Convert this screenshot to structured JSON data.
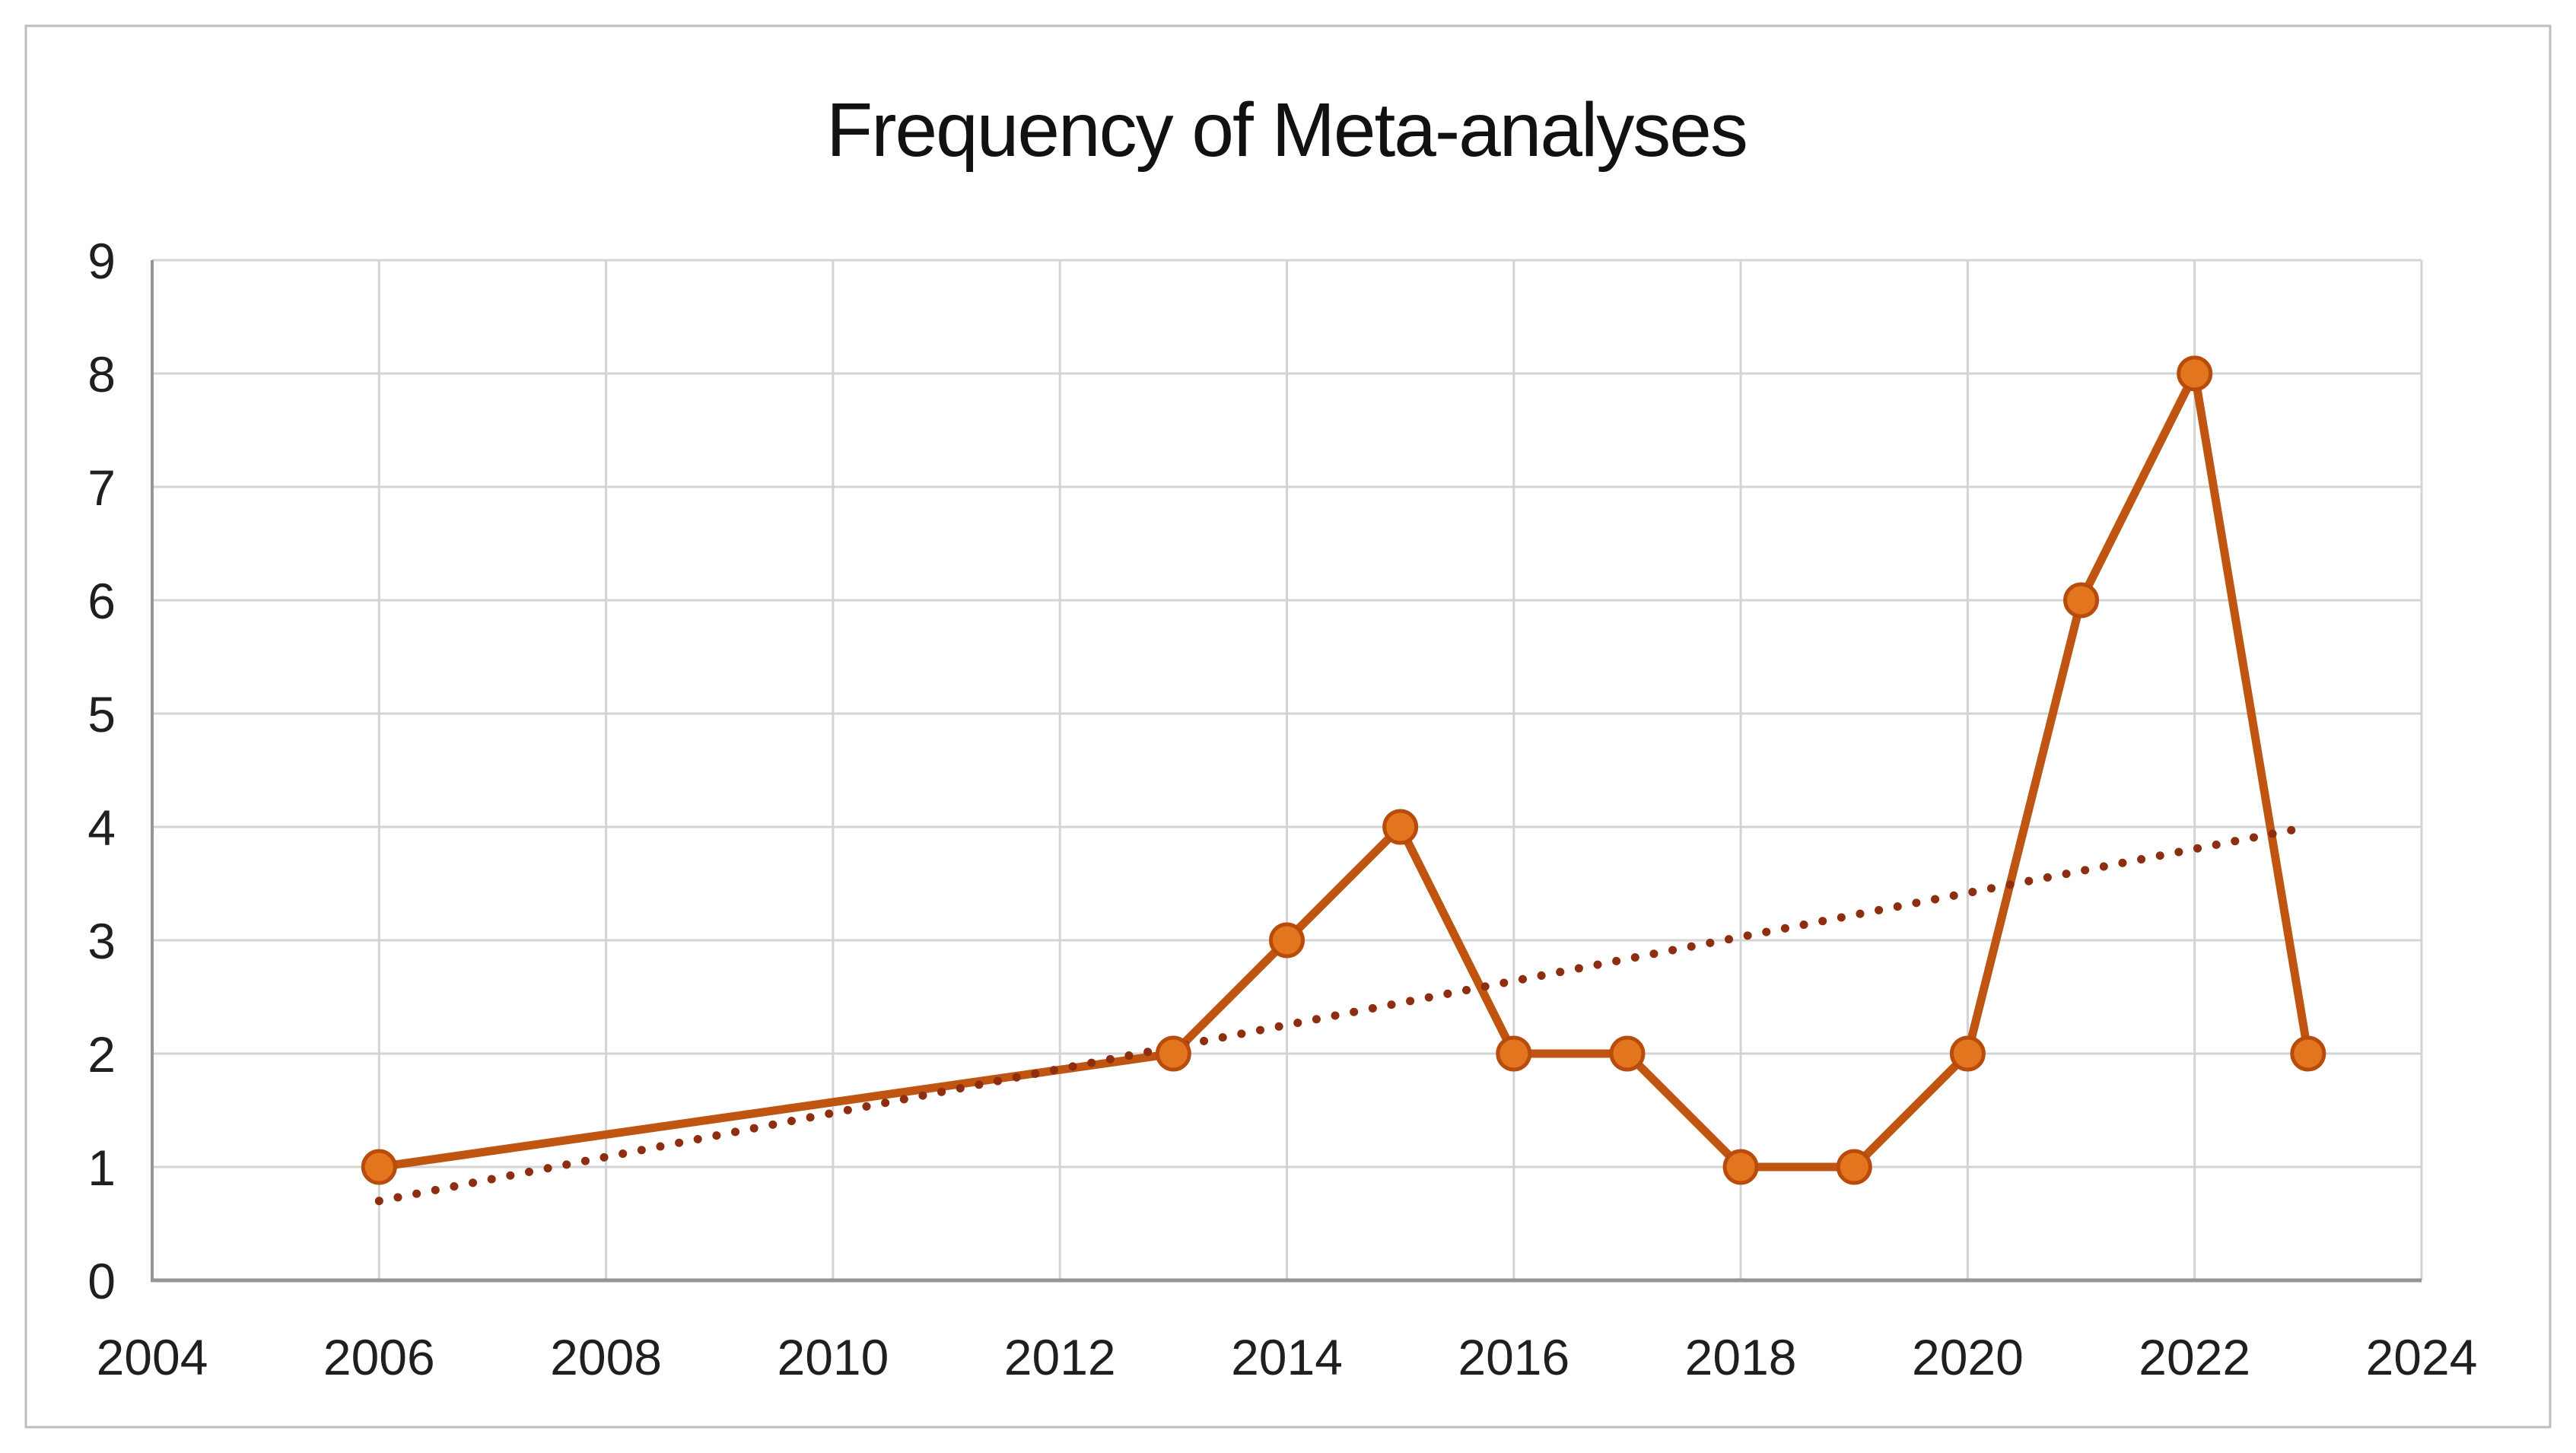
{
  "figure": {
    "background": "#ffffff",
    "border_color": "#bdbdbd"
  },
  "chart_data": {
    "type": "line",
    "title": "Frequency of Meta-analyses",
    "x": [
      2006,
      2013,
      2014,
      2015,
      2016,
      2017,
      2018,
      2019,
      2020,
      2021,
      2022,
      2023
    ],
    "values": [
      1,
      2,
      3,
      4,
      2,
      2,
      1,
      1,
      2,
      6,
      8,
      2
    ],
    "trendline": {
      "style": "dotted",
      "x": [
        2006,
        2023
      ],
      "values": [
        0.7,
        4.0
      ],
      "color": "#8e2e10"
    },
    "xlabel": "",
    "ylabel": "",
    "xlim": [
      2004,
      2024
    ],
    "ylim": [
      0,
      9
    ],
    "x_ticks": [
      "2004",
      "2006",
      "2008",
      "2010",
      "2012",
      "2014",
      "2016",
      "2018",
      "2020",
      "2022",
      "2024"
    ],
    "y_ticks": [
      "0",
      "1",
      "2",
      "3",
      "4",
      "5",
      "6",
      "7",
      "8",
      "9"
    ],
    "grid": true,
    "legend": "none",
    "colors": {
      "line": "#c05511",
      "marker_fill": "#e2751e",
      "marker_stroke": "#b84c0c",
      "gridline": "#d4d4d4",
      "axis": "#969696",
      "tick_label": "#1f1f1f",
      "title": "#111111"
    }
  }
}
